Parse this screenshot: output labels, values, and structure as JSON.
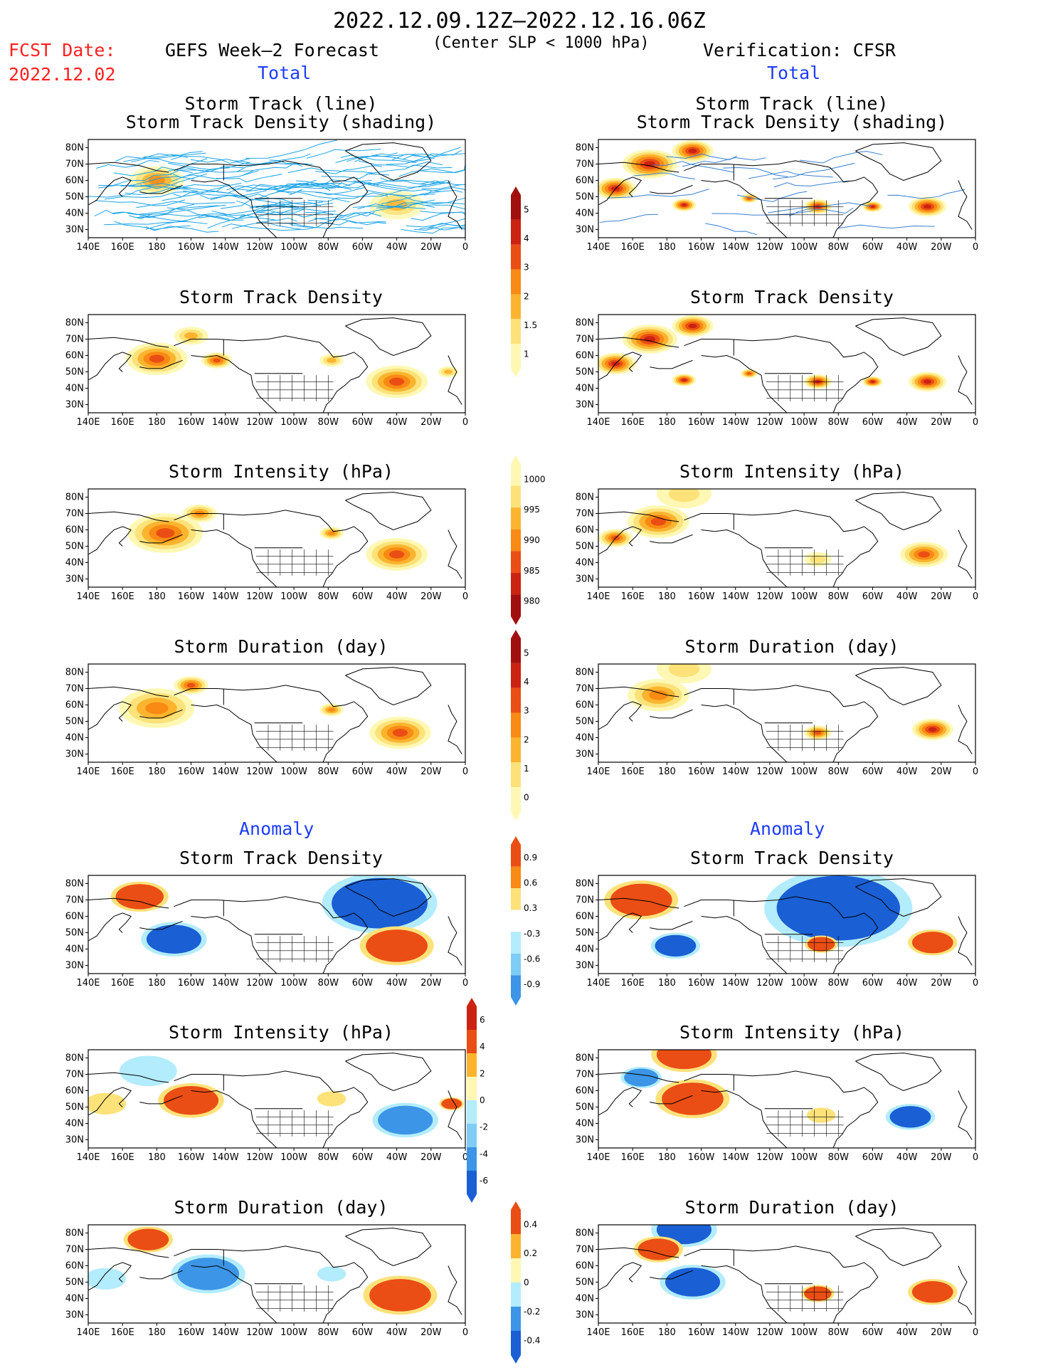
{
  "header": {
    "period": "2022.12.09.12Z—2022.12.16.06Z",
    "fcst_label": "FCST Date:",
    "fcst_date": "2022.12.02",
    "left_title": "GEFS Week—2 Forecast",
    "center_note": "(Center SLP < 1000 hPa)",
    "right_title": "Verification: CFSR",
    "total_left": "Total",
    "total_right": "Total",
    "anomaly_left": "Anomaly",
    "anomaly_right": "Anomaly"
  },
  "panel_titles": {
    "track_line": "Storm Track (line)",
    "track_shading": "Storm Track Density (shading)",
    "density": "Storm Track Density",
    "intensity": "Storm Intensity (hPa)",
    "duration": "Storm Duration (day)"
  },
  "axes": {
    "lon_labels": [
      "140E",
      "160E",
      "180",
      "160W",
      "140W",
      "120W",
      "100W",
      "80W",
      "60W",
      "40W",
      "20W",
      "0"
    ],
    "lat_labels": [
      "80N",
      "70N",
      "60N",
      "50N",
      "40N",
      "30N"
    ]
  },
  "colors": {
    "c1": "#fef8b4",
    "c2": "#fde27a",
    "c3": "#fcb42f",
    "c4": "#f98a14",
    "c5": "#ea4e14",
    "c6": "#cb2212",
    "c7": "#a20f0f",
    "b1": "#b3ecfc",
    "b2": "#7ecdf7",
    "b3": "#3c95e6",
    "b4": "#1a5fd4",
    "land": "#ffffff",
    "track_fcst": "#1aa3e6",
    "track_ens": "#f7a334",
    "track_obs": "#3a7fd0"
  },
  "chart_data": [
    {
      "panel": "fcst-total-track",
      "type": "heatmap",
      "title": "Storm Track (line) / Storm Track Density (shading)",
      "xlim": [
        140,
        360
      ],
      "ylim": [
        25,
        85
      ],
      "blobs": [
        {
          "lon": 180,
          "lat": 60,
          "r": 16,
          "v": 3
        },
        {
          "lon": 320,
          "lat": 45,
          "r": 16,
          "v": 2
        }
      ],
      "note": "ensemble track lines"
    },
    {
      "panel": "fcst-total-density",
      "type": "heatmap",
      "title": "Storm Track Density",
      "xlim": [
        140,
        360
      ],
      "ylim": [
        25,
        85
      ],
      "colorbar": [
        1,
        1.5,
        2,
        3,
        4,
        5
      ],
      "blobs": [
        {
          "lon": 180,
          "lat": 58,
          "r": 18,
          "v": 4
        },
        {
          "lon": 200,
          "lat": 72,
          "r": 10,
          "v": 2
        },
        {
          "lon": 215,
          "lat": 57,
          "r": 9,
          "v": 3.5
        },
        {
          "lon": 282,
          "lat": 57,
          "r": 7,
          "v": 1.5
        },
        {
          "lon": 320,
          "lat": 44,
          "r": 18,
          "v": 3.5
        },
        {
          "lon": 350,
          "lat": 50,
          "r": 6,
          "v": 2
        }
      ]
    },
    {
      "panel": "fcst-total-intensity",
      "type": "heatmap",
      "title": "Storm Intensity (hPa)",
      "xlim": [
        140,
        360
      ],
      "ylim": [
        25,
        85
      ],
      "colorbar": [
        1000,
        995,
        990,
        985,
        980
      ],
      "blobs": [
        {
          "lon": 185,
          "lat": 58,
          "r": 22,
          "v": 4
        },
        {
          "lon": 205,
          "lat": 70,
          "r": 10,
          "v": 3
        },
        {
          "lon": 282,
          "lat": 58,
          "r": 7,
          "v": 3
        },
        {
          "lon": 320,
          "lat": 45,
          "r": 18,
          "v": 3.5
        }
      ]
    },
    {
      "panel": "fcst-total-duration",
      "type": "heatmap",
      "title": "Storm Duration (day)",
      "xlim": [
        140,
        360
      ],
      "ylim": [
        25,
        85
      ],
      "colorbar": [
        0,
        1,
        2,
        3,
        4,
        5
      ],
      "blobs": [
        {
          "lon": 180,
          "lat": 58,
          "r": 22,
          "v": 3
        },
        {
          "lon": 200,
          "lat": 72,
          "r": 10,
          "v": 3.5
        },
        {
          "lon": 282,
          "lat": 57,
          "r": 7,
          "v": 3
        },
        {
          "lon": 322,
          "lat": 43,
          "r": 18,
          "v": 4
        }
      ]
    },
    {
      "panel": "obs-total-track",
      "type": "heatmap",
      "title": "Storm Track (line) / Storm Track Density (shading)",
      "xlim": [
        140,
        360
      ],
      "ylim": [
        25,
        85
      ],
      "blobs": [
        {
          "lon": 170,
          "lat": 70,
          "r": 16,
          "v": 5
        },
        {
          "lon": 150,
          "lat": 55,
          "r": 12,
          "v": 5
        },
        {
          "lon": 195,
          "lat": 78,
          "r": 12,
          "v": 5
        },
        {
          "lon": 190,
          "lat": 45,
          "r": 7,
          "v": 5
        },
        {
          "lon": 228,
          "lat": 49,
          "r": 5,
          "v": 4
        },
        {
          "lon": 268,
          "lat": 44,
          "r": 8,
          "v": 5
        },
        {
          "lon": 300,
          "lat": 44,
          "r": 6,
          "v": 5
        },
        {
          "lon": 332,
          "lat": 44,
          "r": 11,
          "v": 5
        }
      ]
    },
    {
      "panel": "obs-total-density",
      "type": "heatmap",
      "title": "Storm Track Density",
      "xlim": [
        140,
        360
      ],
      "ylim": [
        25,
        85
      ],
      "blobs": [
        {
          "lon": 170,
          "lat": 70,
          "r": 16,
          "v": 5
        },
        {
          "lon": 150,
          "lat": 55,
          "r": 12,
          "v": 5
        },
        {
          "lon": 195,
          "lat": 78,
          "r": 12,
          "v": 5
        },
        {
          "lon": 190,
          "lat": 45,
          "r": 7,
          "v": 5
        },
        {
          "lon": 228,
          "lat": 49,
          "r": 5,
          "v": 4
        },
        {
          "lon": 268,
          "lat": 44,
          "r": 8,
          "v": 5
        },
        {
          "lon": 300,
          "lat": 44,
          "r": 6,
          "v": 5
        },
        {
          "lon": 332,
          "lat": 44,
          "r": 11,
          "v": 5
        }
      ]
    },
    {
      "panel": "obs-total-intensity",
      "type": "heatmap",
      "title": "Storm Intensity (hPa)",
      "xlim": [
        140,
        360
      ],
      "ylim": [
        25,
        85
      ],
      "blobs": [
        {
          "lon": 175,
          "lat": 65,
          "r": 18,
          "v": 3.5
        },
        {
          "lon": 150,
          "lat": 55,
          "r": 10,
          "v": 4
        },
        {
          "lon": 190,
          "lat": 82,
          "r": 16,
          "v": 1
        },
        {
          "lon": 268,
          "lat": 42,
          "r": 8,
          "v": 1
        },
        {
          "lon": 330,
          "lat": 45,
          "r": 14,
          "v": 4
        }
      ]
    },
    {
      "panel": "obs-total-duration",
      "type": "heatmap",
      "title": "Storm Duration (day)",
      "xlim": [
        140,
        360
      ],
      "ylim": [
        25,
        85
      ],
      "blobs": [
        {
          "lon": 175,
          "lat": 66,
          "r": 18,
          "v": 3
        },
        {
          "lon": 190,
          "lat": 82,
          "r": 16,
          "v": 1
        },
        {
          "lon": 268,
          "lat": 43,
          "r": 8,
          "v": 4
        },
        {
          "lon": 335,
          "lat": 45,
          "r": 12,
          "v": 5
        }
      ]
    },
    {
      "panel": "fcst-anom-density",
      "type": "heatmap",
      "title": "Storm Track Density",
      "xlim": [
        140,
        360
      ],
      "ylim": [
        25,
        85
      ],
      "colorbar": [
        0.9,
        0.6,
        0.3,
        -0.3,
        -0.6,
        -0.9
      ],
      "blobs": [
        {
          "lon": 170,
          "lat": 72,
          "r": 14,
          "v": 3
        },
        {
          "lon": 190,
          "lat": 46,
          "r": 16,
          "v": -3
        },
        {
          "lon": 310,
          "lat": 68,
          "r": 28,
          "v": -3
        },
        {
          "lon": 320,
          "lat": 42,
          "r": 18,
          "v": 3
        }
      ]
    },
    {
      "panel": "fcst-anom-intensity",
      "type": "heatmap",
      "title": "Storm Intensity (hPa)",
      "xlim": [
        140,
        360
      ],
      "ylim": [
        25,
        85
      ],
      "colorbar": [
        6,
        4,
        2,
        0,
        -2,
        -4,
        -6
      ],
      "blobs": [
        {
          "lon": 175,
          "lat": 72,
          "r": 14,
          "v": -1
        },
        {
          "lon": 200,
          "lat": 54,
          "r": 16,
          "v": 3
        },
        {
          "lon": 150,
          "lat": 52,
          "r": 10,
          "v": 1
        },
        {
          "lon": 325,
          "lat": 42,
          "r": 16,
          "v": -2
        },
        {
          "lon": 282,
          "lat": 55,
          "r": 7,
          "v": 1
        },
        {
          "lon": 352,
          "lat": 52,
          "r": 6,
          "v": 3
        }
      ]
    },
    {
      "panel": "fcst-anom-duration",
      "type": "heatmap",
      "title": "Storm Duration (day)",
      "xlim": [
        140,
        360
      ],
      "ylim": [
        25,
        85
      ],
      "colorbar": [
        0.4,
        0.2,
        0,
        -0.2,
        -0.4
      ],
      "blobs": [
        {
          "lon": 175,
          "lat": 76,
          "r": 12,
          "v": 3
        },
        {
          "lon": 210,
          "lat": 55,
          "r": 18,
          "v": -2
        },
        {
          "lon": 150,
          "lat": 52,
          "r": 10,
          "v": -1
        },
        {
          "lon": 282,
          "lat": 55,
          "r": 7,
          "v": -1
        },
        {
          "lon": 322,
          "lat": 42,
          "r": 18,
          "v": 3
        }
      ]
    },
    {
      "panel": "obs-anom-density",
      "type": "heatmap",
      "title": "Storm Track Density",
      "xlim": [
        140,
        360
      ],
      "ylim": [
        25,
        85
      ],
      "blobs": [
        {
          "lon": 165,
          "lat": 70,
          "r": 18,
          "v": 3
        },
        {
          "lon": 280,
          "lat": 65,
          "r": 36,
          "v": -3
        },
        {
          "lon": 185,
          "lat": 42,
          "r": 12,
          "v": -3
        },
        {
          "lon": 270,
          "lat": 43,
          "r": 8,
          "v": 3
        },
        {
          "lon": 335,
          "lat": 44,
          "r": 12,
          "v": 3
        }
      ]
    },
    {
      "panel": "obs-anom-intensity",
      "type": "heatmap",
      "title": "Storm Intensity (hPa)",
      "xlim": [
        140,
        360
      ],
      "ylim": [
        25,
        85
      ],
      "blobs": [
        {
          "lon": 190,
          "lat": 82,
          "r": 16,
          "v": 3
        },
        {
          "lon": 195,
          "lat": 55,
          "r": 18,
          "v": 3
        },
        {
          "lon": 165,
          "lat": 68,
          "r": 10,
          "v": -2
        },
        {
          "lon": 270,
          "lat": 45,
          "r": 7,
          "v": 1
        },
        {
          "lon": 322,
          "lat": 44,
          "r": 12,
          "v": -3
        }
      ]
    },
    {
      "panel": "obs-anom-duration",
      "type": "heatmap",
      "title": "Storm Duration (day)",
      "xlim": [
        140,
        360
      ],
      "ylim": [
        25,
        85
      ],
      "blobs": [
        {
          "lon": 190,
          "lat": 82,
          "r": 16,
          "v": -3
        },
        {
          "lon": 175,
          "lat": 70,
          "r": 12,
          "v": 3
        },
        {
          "lon": 195,
          "lat": 50,
          "r": 16,
          "v": -3
        },
        {
          "lon": 268,
          "lat": 43,
          "r": 8,
          "v": 3
        },
        {
          "lon": 335,
          "lat": 44,
          "r": 12,
          "v": 3
        }
      ]
    }
  ]
}
